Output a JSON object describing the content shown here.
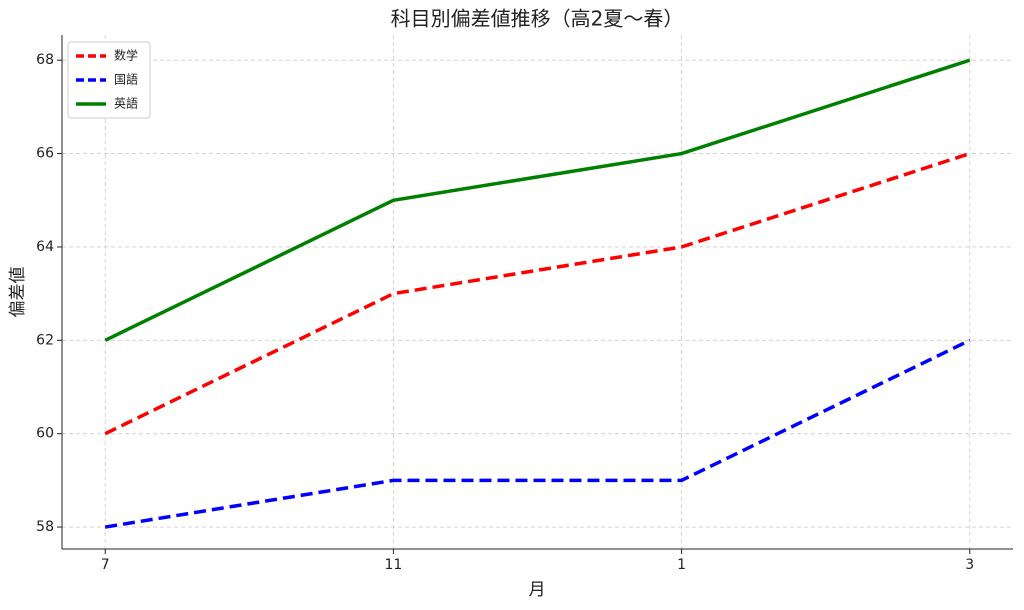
{
  "chart_data": {
    "type": "line",
    "title": "科目別偏差値推移（高2夏～春）",
    "x_label": "月",
    "y_label": "偏差値",
    "categories": [
      "7",
      "11",
      "1",
      "3"
    ],
    "series": [
      {
        "name": "数学",
        "color": "#ff0000",
        "linestyle": "dashed",
        "values": [
          60,
          63,
          64,
          66
        ]
      },
      {
        "name": "国語",
        "color": "#0000ff",
        "linestyle": "dashed",
        "values": [
          58,
          59,
          59,
          62
        ]
      },
      {
        "name": "英語",
        "color": "#008000",
        "linestyle": "solid",
        "values": [
          62,
          65,
          66,
          68
        ]
      }
    ],
    "ylim": [
      57.53,
      68.54
    ],
    "yticks": [
      58,
      60,
      62,
      64,
      66,
      68
    ],
    "grid": true,
    "legend": "upper-left"
  }
}
